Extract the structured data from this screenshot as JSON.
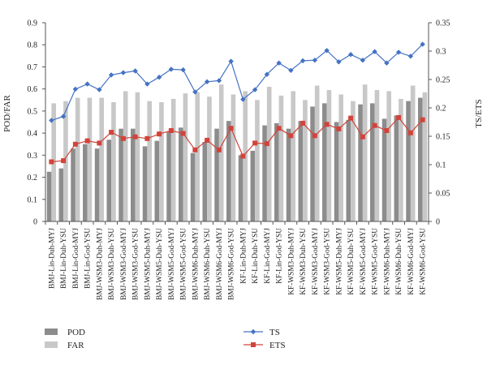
{
  "chart_data": {
    "type": "bar",
    "categories": [
      "BMJ-Lin-Duh-MYJ",
      "BMJ-Lin-Duh-YSU",
      "BMJ-Lin-God-MYJ",
      "BMJ-Lin-God-YSU",
      "BMJ-WSM3-Duh-MYJ",
      "BMJ-WSM3-Duh-YSU",
      "BMJ-WSM3-God-MYJ",
      "BMJ-WSM3-God-YSU",
      "BMJ-WSM5-Duh-MYJ",
      "BMJ-WSM5-Duh-YSU",
      "BMJ-WSM5-God-MYJ",
      "BMJ-WSM5-God-YSU",
      "BMJ-WSM6-Duh-MYJ",
      "BMJ-WSM6-Duh-YSU",
      "BMJ-WSM6-God-MYJ",
      "BMJ-WSM6-God-YSU",
      "KF-Lin-Duh-MYJ",
      "KF-Lin-Duh-YSU",
      "KF-Lin-God-MYJ",
      "KF-Lin-God-YSU",
      "KF-WSM3-Duh-MYJ",
      "KF-WSM3-Duh-YSU",
      "KF-WSM3-God-MYJ",
      "KF-WSM3-God-YSU",
      "KF-WSM5-Duh-MYJ",
      "KF-WSM5-Duh-YSU",
      "KF-WSM5-God-MYJ",
      "KF-WSM5-God-YSU",
      "KF-WSM6-Duh-MYJ",
      "KF-WSM6-Duh-YSU",
      "KF-WSM6-God-MYJ",
      "KF-WSM6-God-YSU"
    ],
    "left_axis": {
      "label": "POD/FAR",
      "ylim": [
        0,
        0.9
      ],
      "ticks": [
        "0",
        "0.1",
        "0.2",
        "0.3",
        "0.4",
        "0.5",
        "0.6",
        "0.7",
        "0.8",
        "0.9"
      ]
    },
    "right_axis": {
      "label": "TS/ETS",
      "ylim": [
        0,
        0.35
      ],
      "ticks": [
        "0",
        "0.05",
        "0.1",
        "0.15",
        "0.2",
        "0.25",
        "0.3",
        "0.35"
      ]
    },
    "series": [
      {
        "name": "POD",
        "kind": "bar",
        "axis": "left",
        "color": "#8c8c8c",
        "values": [
          0.225,
          0.24,
          0.33,
          0.35,
          0.33,
          0.37,
          0.42,
          0.42,
          0.34,
          0.365,
          0.405,
          0.425,
          0.31,
          0.36,
          0.42,
          0.455,
          0.3,
          0.32,
          0.435,
          0.445,
          0.42,
          0.455,
          0.52,
          0.535,
          0.45,
          0.46,
          0.53,
          0.535,
          0.465,
          0.48,
          0.545,
          0.56
        ]
      },
      {
        "name": "FAR",
        "kind": "bar",
        "axis": "left",
        "color": "#c8c8c8",
        "values": [
          0.535,
          0.545,
          0.56,
          0.56,
          0.56,
          0.54,
          0.59,
          0.585,
          0.545,
          0.54,
          0.555,
          0.58,
          0.585,
          0.565,
          0.62,
          0.575,
          0.59,
          0.55,
          0.61,
          0.57,
          0.59,
          0.55,
          0.615,
          0.595,
          0.575,
          0.545,
          0.62,
          0.595,
          0.59,
          0.555,
          0.615,
          0.585
        ]
      },
      {
        "name": "TS",
        "kind": "line",
        "axis": "right",
        "color": "#4472c4",
        "values": [
          0.178,
          0.185,
          0.233,
          0.242,
          0.232,
          0.258,
          0.262,
          0.265,
          0.242,
          0.254,
          0.268,
          0.267,
          0.228,
          0.246,
          0.248,
          0.282,
          0.215,
          0.232,
          0.259,
          0.279,
          0.266,
          0.283,
          0.284,
          0.301,
          0.281,
          0.294,
          0.284,
          0.299,
          0.279,
          0.298,
          0.291,
          0.312
        ]
      },
      {
        "name": "ETS",
        "kind": "line",
        "axis": "right",
        "color": "#d2433a",
        "values": [
          0.105,
          0.107,
          0.136,
          0.142,
          0.138,
          0.157,
          0.146,
          0.149,
          0.146,
          0.154,
          0.16,
          0.155,
          0.126,
          0.143,
          0.126,
          0.164,
          0.115,
          0.138,
          0.137,
          0.164,
          0.151,
          0.173,
          0.151,
          0.171,
          0.163,
          0.182,
          0.149,
          0.169,
          0.16,
          0.183,
          0.156,
          0.179
        ]
      }
    ],
    "legend": [
      {
        "name": "POD",
        "symbol": "bar",
        "color": "#8c8c8c"
      },
      {
        "name": "FAR",
        "symbol": "bar",
        "color": "#c8c8c8"
      },
      {
        "name": "TS",
        "symbol": "line-diamond",
        "color": "#4472c4"
      },
      {
        "name": "ETS",
        "symbol": "line-square",
        "color": "#d2433a"
      }
    ],
    "legend_placement": "bottom",
    "grid": false
  }
}
